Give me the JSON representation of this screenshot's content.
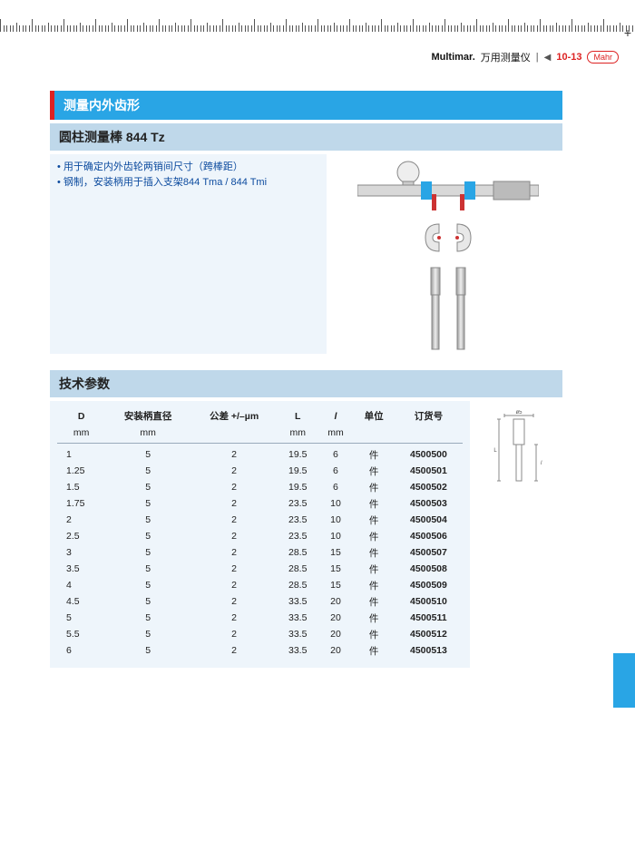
{
  "header": {
    "brand": "Multimar.",
    "text": "万用测量仪",
    "separator": "|",
    "triangle": "◀",
    "code": "10-13",
    "badge": "Mahr"
  },
  "titles": {
    "main": "测量内外齿形",
    "sub": "圆柱测量棒 844 Tz",
    "spec": "技术参数"
  },
  "description": {
    "line1": "• 用于确定内外齿轮两销间尺寸（跨棒距）",
    "line2": "• 钢制，安装柄用于插入支架844 Tma / 844 Tmi"
  },
  "columns": {
    "d": "D",
    "shaft": "安装柄直径",
    "tol": "公差 +/–µm",
    "l_big": "L",
    "l_small": "l",
    "unit": "单位",
    "order": "订货号"
  },
  "units": {
    "mm": "mm"
  },
  "unit_value": "件",
  "rows": [
    {
      "d": "1",
      "shaft": "5",
      "tol": "2",
      "L": "19.5",
      "l": "6",
      "order": "4500500"
    },
    {
      "d": "1.25",
      "shaft": "5",
      "tol": "2",
      "L": "19.5",
      "l": "6",
      "order": "4500501"
    },
    {
      "d": "1.5",
      "shaft": "5",
      "tol": "2",
      "L": "19.5",
      "l": "6",
      "order": "4500502"
    },
    {
      "d": "1.75",
      "shaft": "5",
      "tol": "2",
      "L": "23.5",
      "l": "10",
      "order": "4500503"
    },
    {
      "d": "2",
      "shaft": "5",
      "tol": "2",
      "L": "23.5",
      "l": "10",
      "order": "4500504"
    },
    {
      "d": "2.5",
      "shaft": "5",
      "tol": "2",
      "L": "23.5",
      "l": "10",
      "order": "4500506"
    },
    {
      "d": "3",
      "shaft": "5",
      "tol": "2",
      "L": "28.5",
      "l": "15",
      "order": "4500507"
    },
    {
      "d": "3.5",
      "shaft": "5",
      "tol": "2",
      "L": "28.5",
      "l": "15",
      "order": "4500508"
    },
    {
      "d": "4",
      "shaft": "5",
      "tol": "2",
      "L": "28.5",
      "l": "15",
      "order": "4500509"
    },
    {
      "d": "4.5",
      "shaft": "5",
      "tol": "2",
      "L": "33.5",
      "l": "20",
      "order": "4500510"
    },
    {
      "d": "5",
      "shaft": "5",
      "tol": "2",
      "L": "33.5",
      "l": "20",
      "order": "4500511"
    },
    {
      "d": "5.5",
      "shaft": "5",
      "tol": "2",
      "L": "33.5",
      "l": "20",
      "order": "4500512"
    },
    {
      "d": "6",
      "shaft": "5",
      "tol": "2",
      "L": "33.5",
      "l": "20",
      "order": "4500513"
    }
  ],
  "style": {
    "accent_blue": "#29a5e5",
    "accent_red": "#d22",
    "panel_blue": "#bfd8ea",
    "panel_light": "#eef5fb",
    "link_blue": "#0b4a9e"
  },
  "illustrations": {
    "gauge": "measuring-gauge-with-rods",
    "jaws": "adjustable-jaws",
    "rods": "two-cylindrical-rods",
    "dim": "dimension-diagram"
  }
}
